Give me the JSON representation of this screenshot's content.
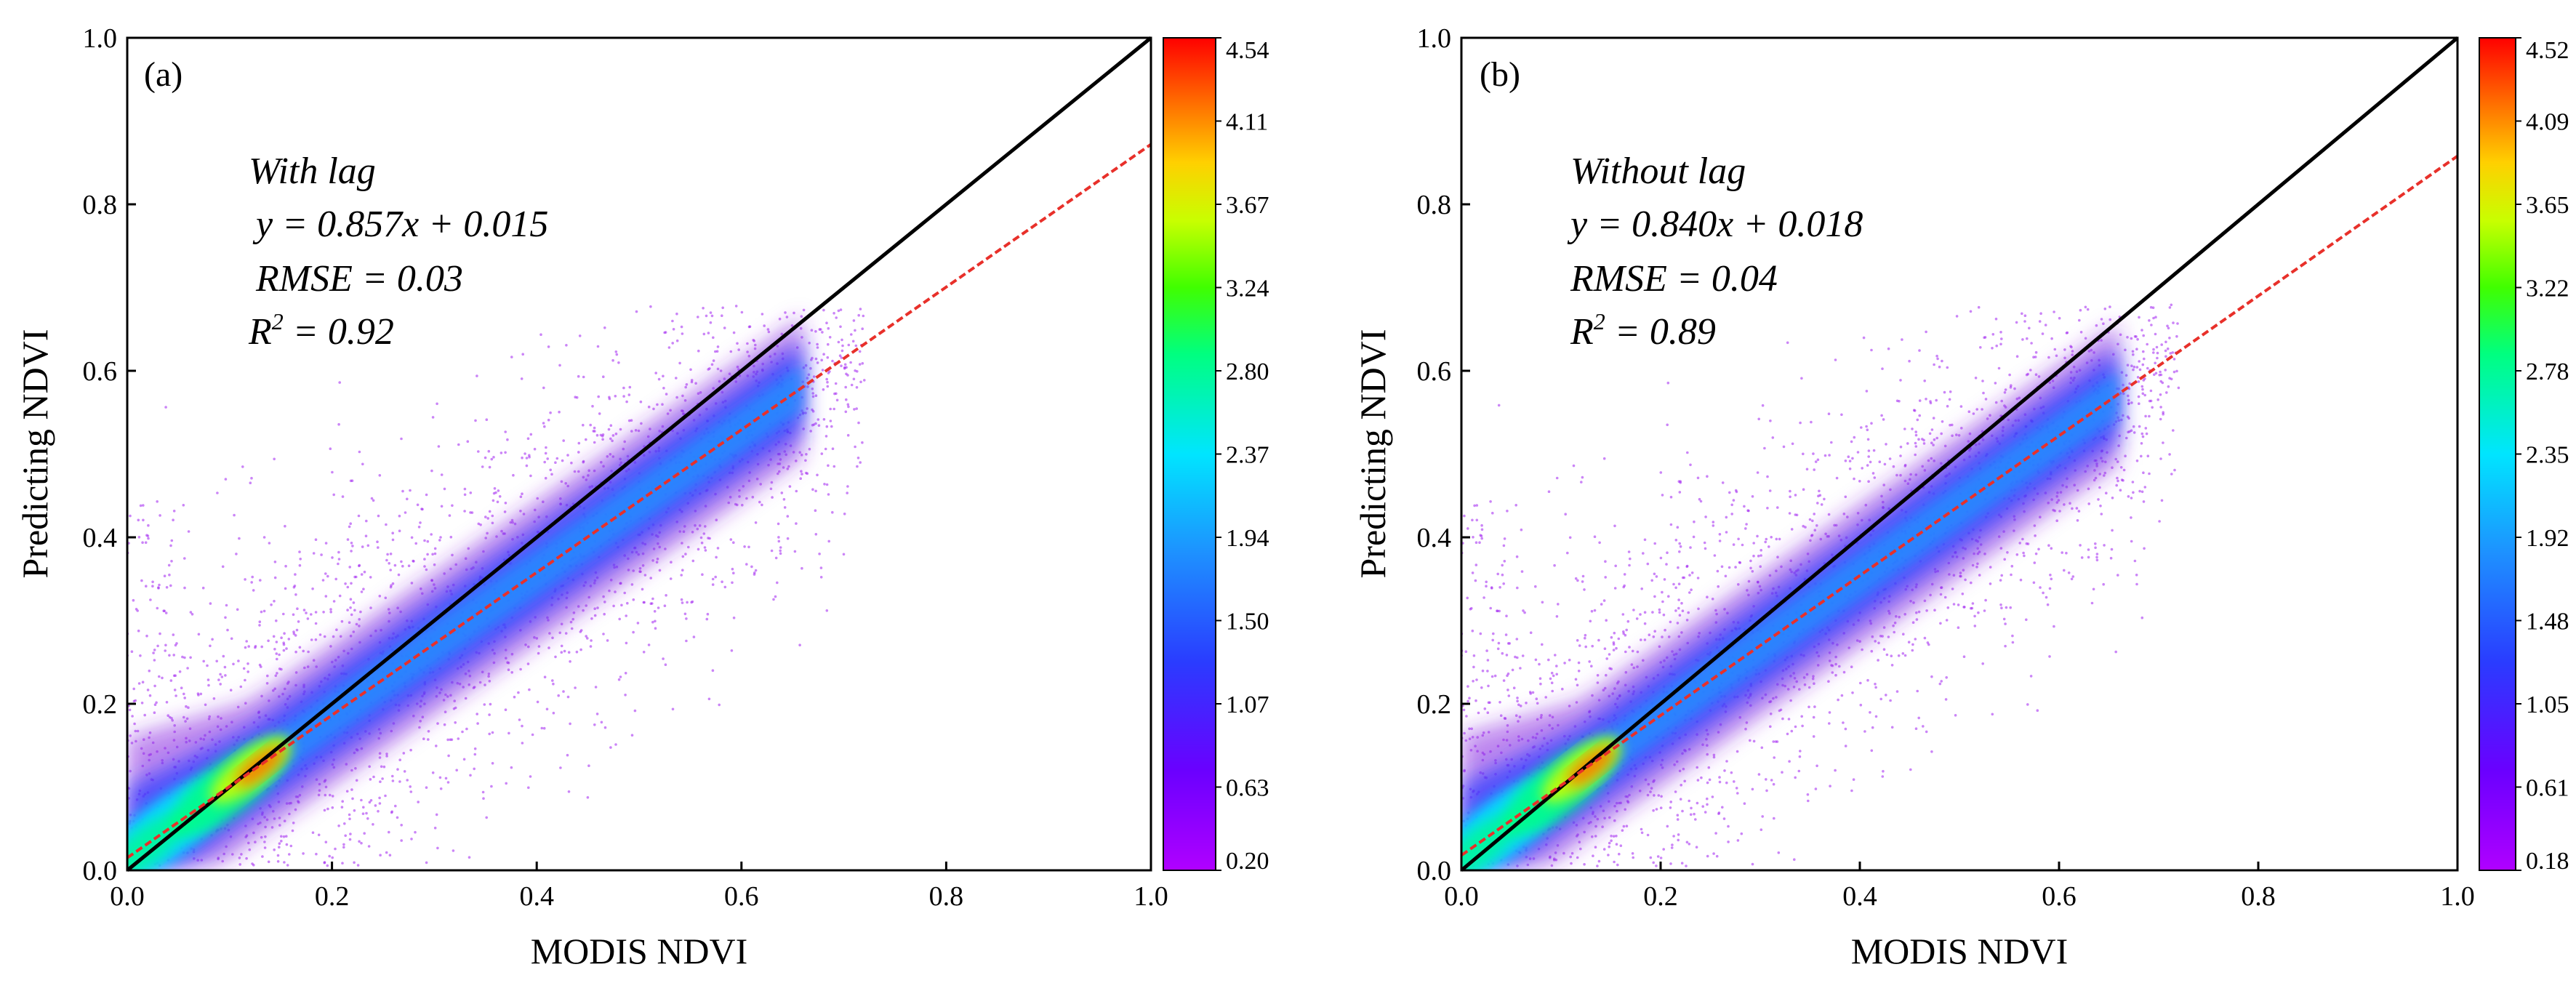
{
  "chart_data": [
    {
      "type": "scatter",
      "panel_label": "(a)",
      "xlabel": "MODIS NDVI",
      "ylabel": "Predicting NDVI",
      "xlim": [
        0.0,
        1.0
      ],
      "ylim": [
        0.0,
        1.0
      ],
      "x_ticks": [
        "0.0",
        "0.2",
        "0.4",
        "0.6",
        "0.8",
        "1.0"
      ],
      "y_ticks": [
        "0.0",
        "0.2",
        "0.4",
        "0.6",
        "0.8",
        "1.0"
      ],
      "annotation": {
        "title": "With lag",
        "equation": "y = 0.857x + 0.015",
        "rmse": "RMSE = 0.03",
        "r2_prefix": "R",
        "r2_sup": "2",
        "r2_suffix": " = 0.92"
      },
      "fit_line": {
        "slope": 0.857,
        "intercept": 0.015,
        "color": "#e8302a"
      },
      "identity_line": {
        "slope": 1.0,
        "intercept": 0.0,
        "color": "#000000"
      },
      "density_scale": {
        "min": 0.2,
        "max": 4.54,
        "tick_labels": [
          "0.20",
          "0.63",
          "1.07",
          "1.50",
          "1.94",
          "2.37",
          "2.80",
          "3.24",
          "3.67",
          "4.11",
          "4.54"
        ]
      }
    },
    {
      "type": "scatter",
      "panel_label": "(b)",
      "xlabel": "MODIS NDVI",
      "ylabel": "Predicting NDVI",
      "xlim": [
        0.0,
        1.0
      ],
      "ylim": [
        0.0,
        1.0
      ],
      "x_ticks": [
        "0.0",
        "0.2",
        "0.4",
        "0.6",
        "0.8",
        "1.0"
      ],
      "y_ticks": [
        "0.0",
        "0.2",
        "0.4",
        "0.6",
        "0.8",
        "1.0"
      ],
      "annotation": {
        "title": "Without lag",
        "equation": "y = 0.840x + 0.018",
        "rmse": "RMSE = 0.04",
        "r2_prefix": "R",
        "r2_sup": "2",
        "r2_suffix": " = 0.89"
      },
      "fit_line": {
        "slope": 0.84,
        "intercept": 0.018,
        "color": "#e8302a"
      },
      "identity_line": {
        "slope": 1.0,
        "intercept": 0.0,
        "color": "#000000"
      },
      "density_scale": {
        "min": 0.18,
        "max": 4.52,
        "tick_labels": [
          "0.18",
          "0.61",
          "1.05",
          "1.48",
          "1.92",
          "2.35",
          "2.78",
          "3.22",
          "3.65",
          "4.09",
          "4.52"
        ]
      }
    }
  ],
  "colormap": [
    "#ffffff",
    "#a020f0",
    "#3f3fff",
    "#1e90ff",
    "#00e5ff",
    "#00ff7f",
    "#7fff00",
    "#ffd700",
    "#ff8c00",
    "#ff0000"
  ]
}
